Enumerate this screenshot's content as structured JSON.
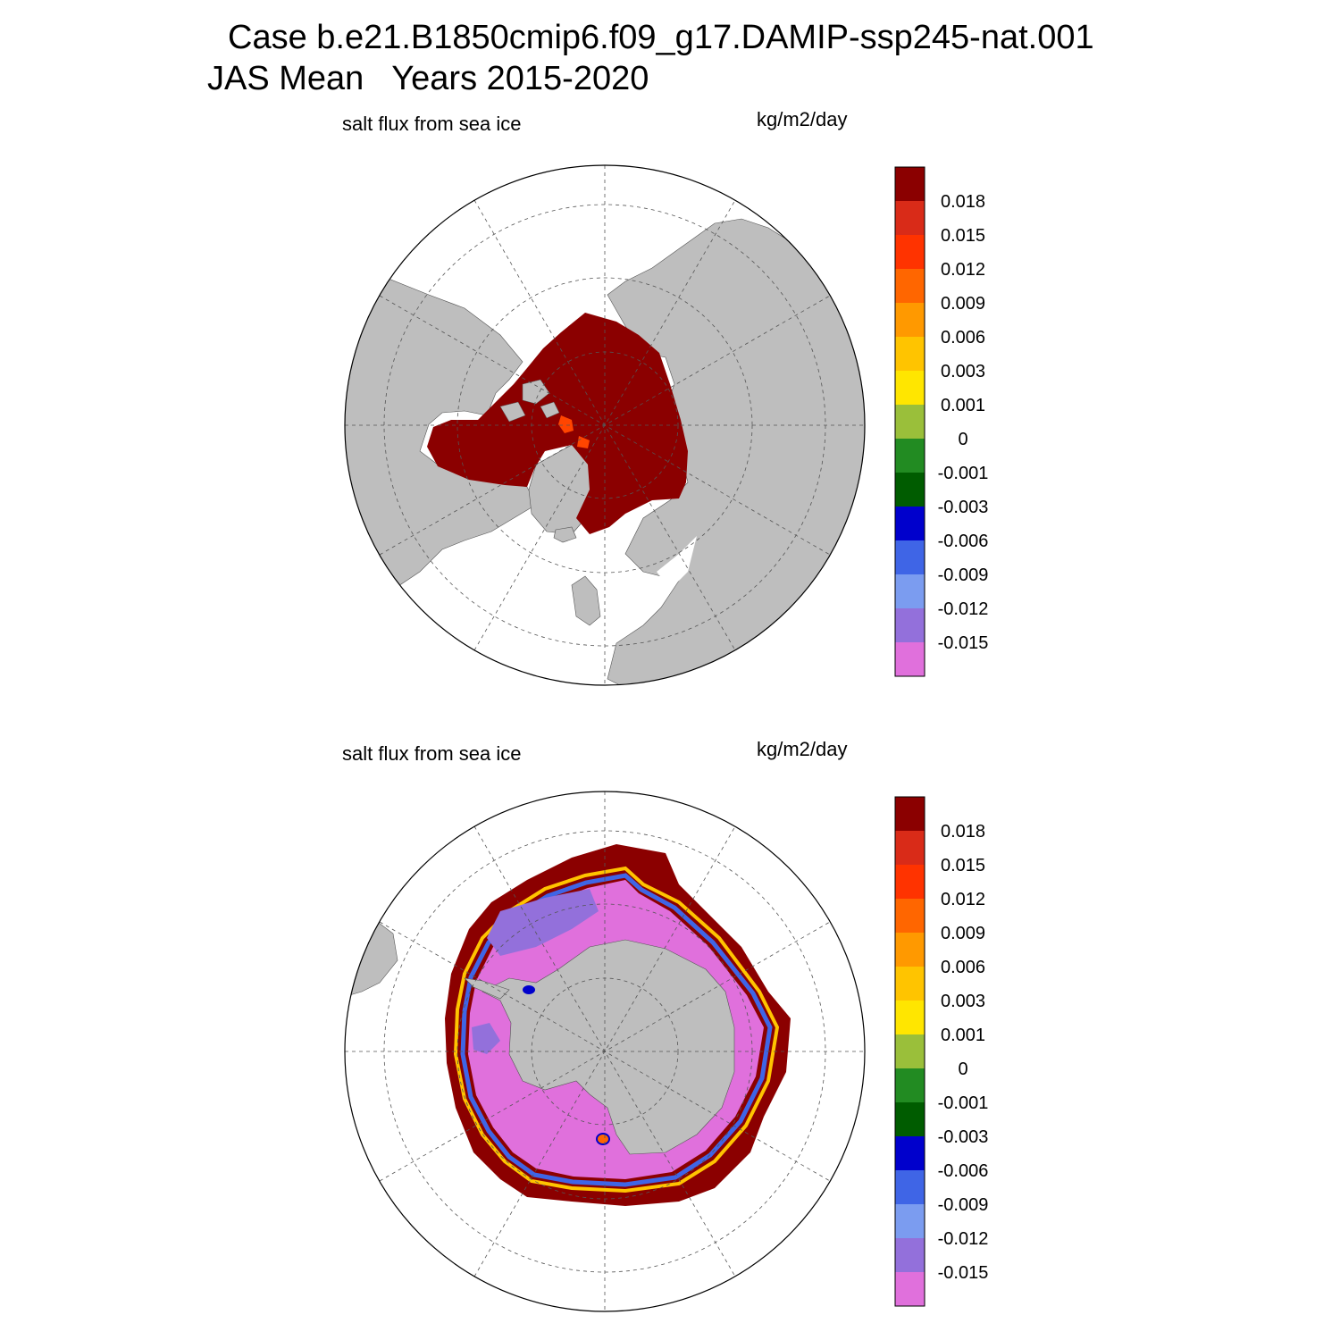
{
  "title": {
    "line1": "Case b.e21.B1850cmip6.f09_g17.DAMIP-ssp245-nat.001",
    "line2": "JAS Mean   Years 2015-2020"
  },
  "panels": [
    {
      "id": "north",
      "hemisphere": "Northern",
      "left_label": "salt flux from sea ice",
      "right_label": "kg/m2/day"
    },
    {
      "id": "south",
      "hemisphere": "Southern",
      "left_label": "salt flux from sea ice",
      "right_label": "kg/m2/day"
    }
  ],
  "colorbar": {
    "labels": [
      "0.018",
      "0.015",
      "0.012",
      "0.009",
      "0.006",
      "0.003",
      "0.001",
      "0",
      "-0.001",
      "-0.003",
      "-0.006",
      "-0.009",
      "-0.012",
      "-0.015"
    ],
    "colors_top_to_bottom": [
      "#8b0000",
      "#d92b18",
      "#ff3300",
      "#ff6600",
      "#ff9900",
      "#ffc400",
      "#ffe600",
      "#9abf3a",
      "#228b22",
      "#005c00",
      "#0000cc",
      "#3f65e6",
      "#7b9cf0",
      "#9370db",
      "#e070dc"
    ]
  },
  "colors": {
    "land": "#bebebe",
    "ocean": "#ffffff",
    "ice_positive": "#8b0000",
    "ice_negative": "#e070dc"
  }
}
